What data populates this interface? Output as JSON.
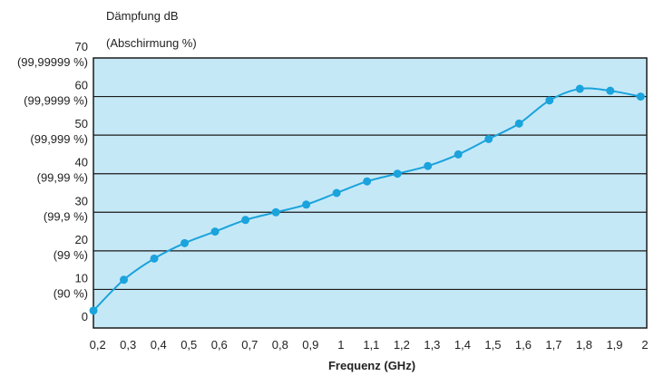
{
  "chart_data": {
    "type": "line",
    "title": "Dämpfung dB",
    "subtitle": "(Abschirmung %)",
    "xlabel": "Frequenz (GHz)",
    "ylabel": "Dämpfung dB",
    "x_tick_labels": [
      "0,2",
      "0,3",
      "0,4",
      "0,5",
      "0,6",
      "0,7",
      "0,8",
      "0,9",
      "1",
      "1,1",
      "1,2",
      "1,3",
      "1,4",
      "1,5",
      "1,6",
      "1,7",
      "1,8",
      "1,9",
      "2"
    ],
    "x_ticks": [
      0.2,
      0.3,
      0.4,
      0.5,
      0.6,
      0.7,
      0.8,
      0.9,
      1.0,
      1.1,
      1.2,
      1.3,
      1.4,
      1.5,
      1.6,
      1.7,
      1.8,
      1.9,
      2.0
    ],
    "y_ticks": [
      0,
      10,
      20,
      30,
      40,
      50,
      60,
      70
    ],
    "y_tick_labels": [
      "0",
      "10",
      "20",
      "30",
      "40",
      "50",
      "60",
      "70"
    ],
    "y_secondary_labels": [
      "",
      "(90 %)",
      "(99 %)",
      "(99,9 %)",
      "(99,99 %)",
      "(99,999 %)",
      "(99,9999 %)",
      "(99,99999 %)"
    ],
    "xlim": [
      0.18,
      2.0
    ],
    "ylim": [
      0,
      70
    ],
    "grid": "horizontal",
    "series": [
      {
        "x": [
          0.18,
          0.28,
          0.38,
          0.48,
          0.58,
          0.68,
          0.78,
          0.88,
          0.98,
          1.08,
          1.18,
          1.28,
          1.38,
          1.48,
          1.58,
          1.68,
          1.78,
          1.88,
          1.98
        ],
        "y": [
          4.5,
          12.5,
          18,
          22,
          25,
          28,
          30,
          32,
          35,
          38,
          40,
          42,
          45,
          49,
          53,
          59,
          62,
          61.5,
          60
        ]
      }
    ],
    "colors": {
      "plot_background": "#c5e8f7",
      "line": "#1aa3dc",
      "grid": "#1a1a1a",
      "frame": "#1a1a1a"
    }
  }
}
